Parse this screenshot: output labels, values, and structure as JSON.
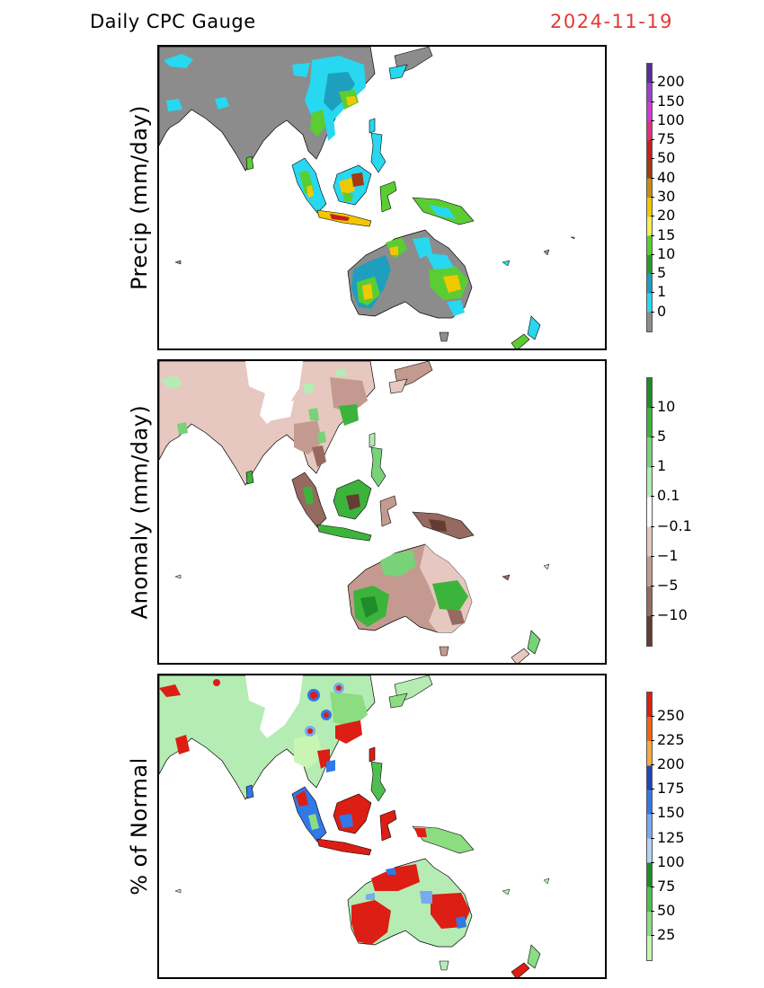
{
  "title": "Daily CPC Gauge",
  "date": "2024-11-19",
  "panels": [
    {
      "id": "precip",
      "ylabel": "Precip (mm/day)",
      "colorbar": {
        "labels": [
          "200",
          "150",
          "100",
          "75",
          "50",
          "40",
          "30",
          "20",
          "15",
          "10",
          "5",
          "1",
          "0"
        ],
        "colors": [
          "#5a2d9a",
          "#9c3fd0",
          "#d23ad2",
          "#e0307a",
          "#c81e1e",
          "#a33a10",
          "#c88a14",
          "#f0c800",
          "#f5f050",
          "#5acd32",
          "#2a9a2a",
          "#1e9fbe",
          "#28d7f0",
          "#8c8c8c"
        ]
      }
    },
    {
      "id": "anomaly",
      "ylabel": "Anomaly (mm/day)",
      "colorbar": {
        "labels": [
          "10",
          "5",
          "1",
          "0.1",
          "−0.1",
          "−1",
          "−5",
          "−10"
        ],
        "colors": [
          "#1e8c28",
          "#3cb43c",
          "#78d278",
          "#b4ecb4",
          "#ffffff",
          "#e6c8c0",
          "#c49a90",
          "#966a60",
          "#643c34"
        ]
      }
    },
    {
      "id": "percent",
      "ylabel": "% of Normal",
      "colorbar": {
        "labels": [
          "250",
          "225",
          "200",
          "175",
          "150",
          "125",
          "100",
          "75",
          "50",
          "25"
        ],
        "colors": [
          "#dc1e14",
          "#f06414",
          "#f5aa3c",
          "#1e46be",
          "#3278e6",
          "#78aaf0",
          "#b4d2f5",
          "#1e8c28",
          "#50be50",
          "#8cdc82",
          "#c8f5b4"
        ]
      }
    }
  ]
}
